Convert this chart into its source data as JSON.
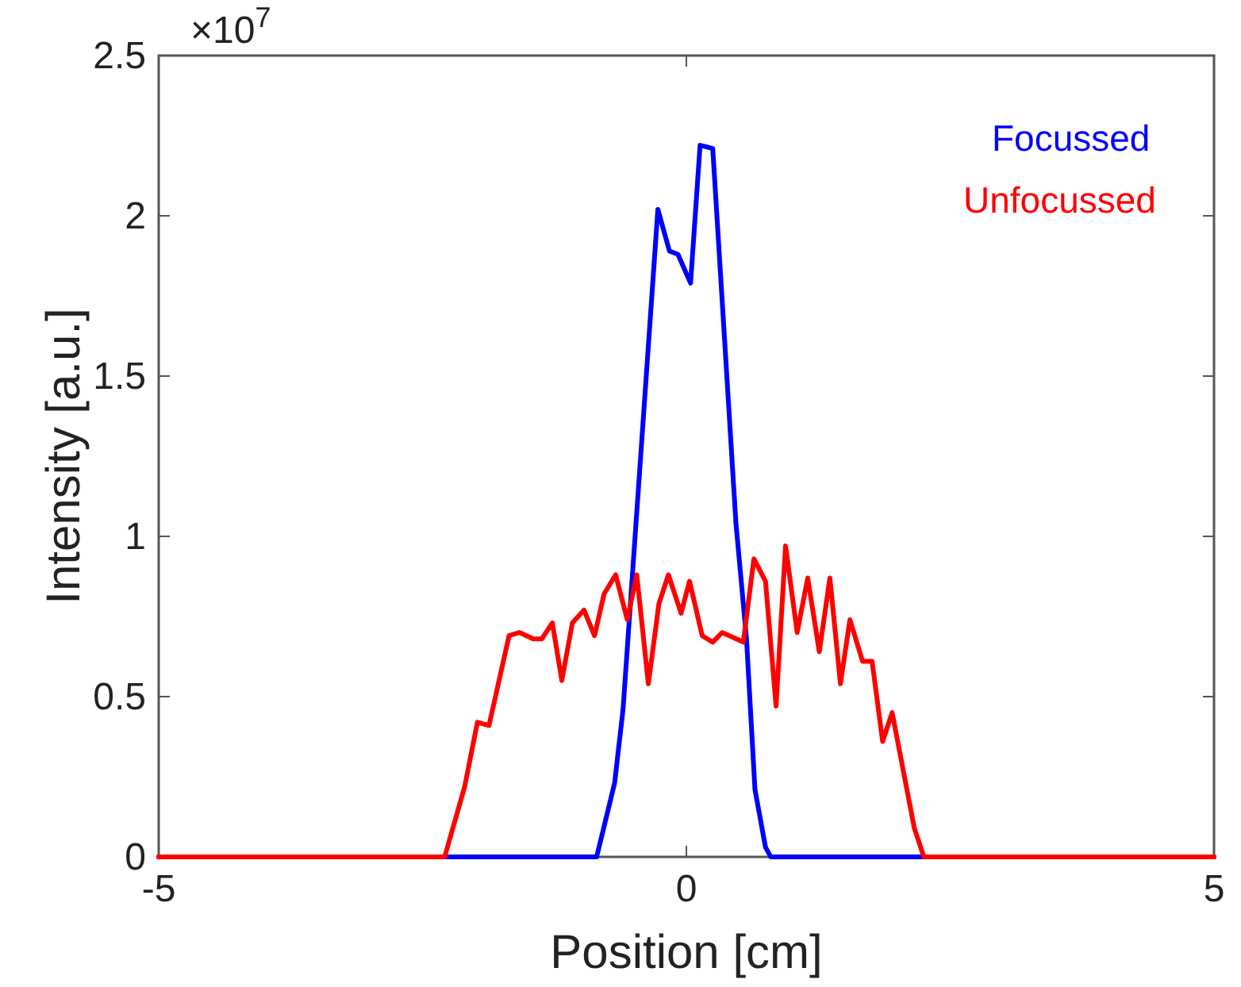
{
  "chart_data": {
    "type": "line",
    "xlabel": "Position [cm]",
    "ylabel": "Intensity [a.u.]",
    "annotations": [
      "×10$^{7}$"
    ],
    "xlim": [
      -5,
      5
    ],
    "xticks": [
      -5,
      0,
      5
    ],
    "ylim": [
      0,
      2.5
    ],
    "yticks": [
      0,
      0.5,
      1,
      1.5,
      2,
      2.5
    ],
    "grid": false,
    "legend": "top right",
    "marker": "none",
    "line_style": "solid",
    "series": [
      {
        "name": "Focussed",
        "color": "#0000ff",
        "x": [
          -5,
          -0.85,
          -0.68,
          -0.6,
          -0.27,
          -0.16,
          -0.08,
          0.04,
          0.13,
          0.25,
          0.47,
          0.57,
          0.65,
          0.75,
          0.8,
          5
        ],
        "values": [
          0,
          0,
          0.23,
          0.46,
          2.02,
          1.89,
          1.88,
          1.79,
          2.22,
          2.21,
          1.04,
          0.68,
          0.21,
          0.03,
          0,
          0
        ]
      },
      {
        "name": "Unfocussed",
        "color": "#ff0000",
        "x": [
          -5,
          -2.29,
          -2.1,
          -1.98,
          -1.87,
          -1.68,
          -1.58,
          -1.45,
          -1.37,
          -1.27,
          -1.18,
          -1.08,
          -0.97,
          -0.87,
          -0.78,
          -0.67,
          -0.56,
          -0.47,
          -0.36,
          -0.26,
          -0.17,
          -0.05,
          0.03,
          0.15,
          0.25,
          0.34,
          0.54,
          0.64,
          0.75,
          0.85,
          0.94,
          1.05,
          1.15,
          1.26,
          1.36,
          1.46,
          1.55,
          1.67,
          1.76,
          1.86,
          1.95,
          2.16,
          2.25,
          5
        ],
        "values": [
          0,
          0,
          0.22,
          0.42,
          0.41,
          0.69,
          0.7,
          0.68,
          0.68,
          0.73,
          0.55,
          0.73,
          0.77,
          0.69,
          0.82,
          0.88,
          0.74,
          0.88,
          0.54,
          0.79,
          0.88,
          0.76,
          0.86,
          0.69,
          0.67,
          0.7,
          0.67,
          0.93,
          0.86,
          0.47,
          0.97,
          0.7,
          0.87,
          0.64,
          0.87,
          0.54,
          0.74,
          0.61,
          0.61,
          0.36,
          0.45,
          0.09,
          0,
          0
        ]
      }
    ]
  }
}
